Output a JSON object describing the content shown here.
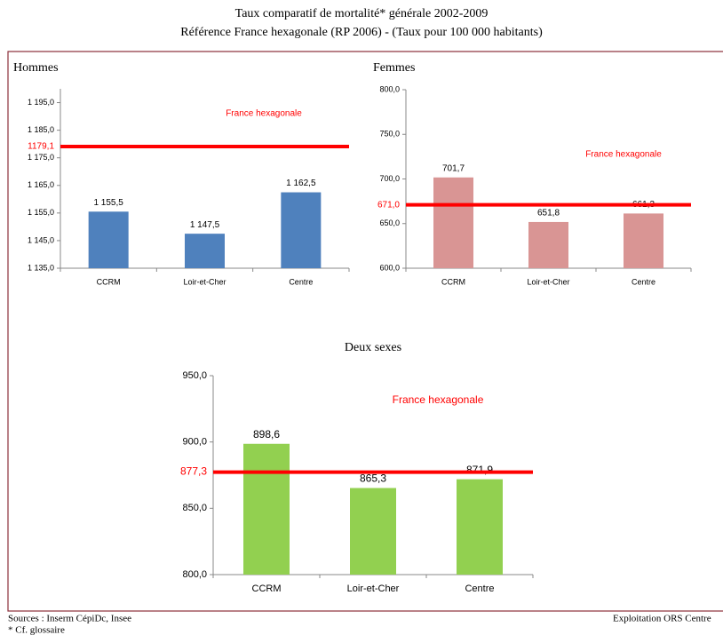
{
  "title": "Taux comparatif de mortalité* générale 2002-2009",
  "subtitle": "Référence France hexagonale (RP 2006) - (Taux pour 100 000 habitants)",
  "sources": "Sources : Inserm CépiDc, Insee",
  "note": "* Cf. glossaire",
  "credit": "Exploitation ORS Centre",
  "chart_data": [
    {
      "type": "bar",
      "title": "Hommes",
      "color": "#4f81bd",
      "categories": [
        "CCRM",
        "Loir-et-Cher",
        "Centre"
      ],
      "values": [
        1155.5,
        1147.5,
        1162.5
      ],
      "value_labels": [
        "1 155,5",
        "1 147,5",
        "1 162,5"
      ],
      "ylim": [
        1135,
        1200
      ],
      "yticks": [
        {
          "value": 1135,
          "label": "1 135,0"
        },
        {
          "value": 1145,
          "label": "1 145,0"
        },
        {
          "value": 1155,
          "label": "1 155,0"
        },
        {
          "value": 1165,
          "label": "1 165,0"
        },
        {
          "value": 1175,
          "label": "1 175,0"
        },
        {
          "value": 1185,
          "label": "1 185,0"
        },
        {
          "value": 1195,
          "label": "1 195,0"
        }
      ],
      "reference": {
        "value": 1179.1,
        "label": "1179,1",
        "name": "France hexagonale",
        "color": "#ff0000"
      }
    },
    {
      "type": "bar",
      "title": "Femmes",
      "color": "#d99594",
      "categories": [
        "CCRM",
        "Loir-et-Cher",
        "Centre"
      ],
      "values": [
        701.7,
        651.8,
        661.3
      ],
      "value_labels": [
        "701,7",
        "651,8",
        "661,3"
      ],
      "ylim": [
        600,
        800
      ],
      "yticks": [
        {
          "value": 600,
          "label": "600,0"
        },
        {
          "value": 650,
          "label": "650,0"
        },
        {
          "value": 700,
          "label": "700,0"
        },
        {
          "value": 750,
          "label": "750,0"
        },
        {
          "value": 800,
          "label": "800,0"
        }
      ],
      "reference": {
        "value": 671.0,
        "label": "671,0",
        "name": "France hexagonale",
        "color": "#ff0000"
      }
    },
    {
      "type": "bar",
      "title": "Deux sexes",
      "color": "#92d050",
      "categories": [
        "CCRM",
        "Loir-et-Cher",
        "Centre"
      ],
      "values": [
        898.6,
        865.3,
        871.9
      ],
      "value_labels": [
        "898,6",
        "865,3",
        "871,9"
      ],
      "ylim": [
        800,
        950
      ],
      "yticks": [
        {
          "value": 800,
          "label": "800,0"
        },
        {
          "value": 850,
          "label": "850,0"
        },
        {
          "value": 900,
          "label": "900,0"
        },
        {
          "value": 950,
          "label": "950,0"
        }
      ],
      "reference": {
        "value": 877.3,
        "label": "877,3",
        "name": "France hexagonale",
        "color": "#ff0000"
      }
    }
  ]
}
